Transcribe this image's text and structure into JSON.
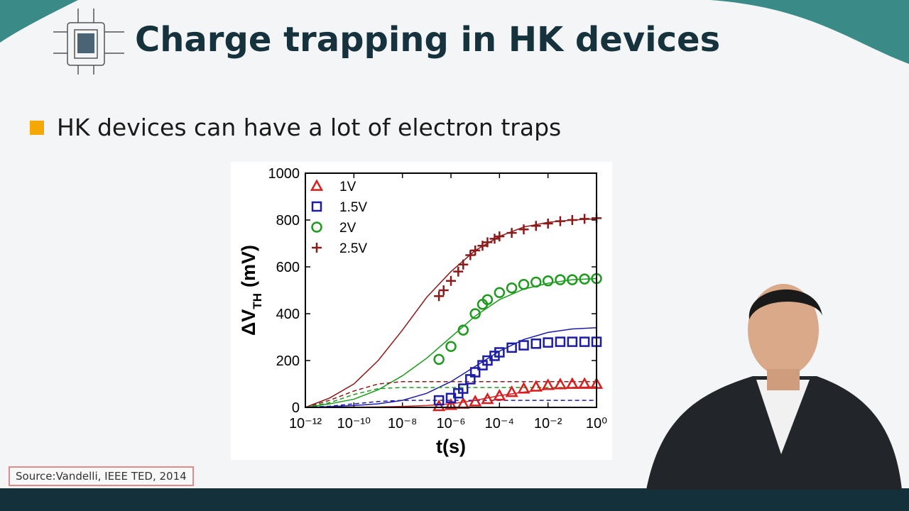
{
  "slide": {
    "title": "Charge trapping in HK devices",
    "bullet": "HK devices can have a lot of electron traps",
    "source": "Source:Vandelli, IEEE TED, 2014"
  },
  "chart_data": {
    "type": "scatter",
    "xlabel": "t(s)",
    "ylabel": [
      "ΔV",
      "TH",
      "(mV)"
    ],
    "xscale": "log",
    "xlim": [
      1e-12,
      1
    ],
    "ylim": [
      0,
      1000
    ],
    "xticks": [
      {
        "value": 1e-12,
        "label": "10⁻¹²"
      },
      {
        "value": 1e-10,
        "label": "10⁻¹⁰"
      },
      {
        "value": 1e-08,
        "label": "10⁻⁸"
      },
      {
        "value": 1e-06,
        "label": "10⁻⁶"
      },
      {
        "value": 0.0001,
        "label": "10⁻⁴"
      },
      {
        "value": 0.01,
        "label": "10⁻²"
      },
      {
        "value": 1,
        "label": "10⁰"
      }
    ],
    "yticks": [
      0,
      200,
      400,
      600,
      800,
      1000
    ],
    "legend": "upper left",
    "series": [
      {
        "name": "1V",
        "color": "#d81e1e",
        "marker": "triangle",
        "x": [
          3.2e-07,
          1e-06,
          3.2e-06,
          1e-05,
          3.2e-05,
          0.0001,
          0.00032,
          0.001,
          0.0032,
          0.01,
          0.032,
          0.1,
          0.32,
          1
        ],
        "values": [
          5,
          10,
          15,
          25,
          35,
          50,
          65,
          80,
          88,
          95,
          98,
          100,
          100,
          100
        ]
      },
      {
        "name": "1.5V",
        "color": "#1c1ca8",
        "marker": "square",
        "x": [
          3.2e-07,
          1e-06,
          2e-06,
          3.2e-06,
          6.3e-06,
          1e-05,
          2e-05,
          3.2e-05,
          6.3e-05,
          0.0001,
          0.00032,
          0.001,
          0.0032,
          0.01,
          0.032,
          0.1,
          0.32,
          1
        ],
        "values": [
          30,
          40,
          60,
          80,
          120,
          150,
          180,
          200,
          220,
          235,
          255,
          265,
          272,
          277,
          280,
          280,
          280,
          280
        ]
      },
      {
        "name": "2V",
        "color": "#1e9a1e",
        "marker": "circle",
        "x": [
          3.2e-07,
          1e-06,
          3.2e-06,
          1e-05,
          2e-05,
          3.2e-05,
          0.0001,
          0.00032,
          0.001,
          0.0032,
          0.01,
          0.032,
          0.1,
          0.32,
          1
        ],
        "values": [
          205,
          260,
          330,
          400,
          440,
          460,
          490,
          510,
          525,
          535,
          540,
          545,
          545,
          548,
          550
        ]
      },
      {
        "name": "2.5V",
        "color": "#8b1a1a",
        "marker": "plus",
        "x": [
          3.2e-07,
          5e-07,
          1e-06,
          2e-06,
          3.2e-06,
          6.3e-06,
          1e-05,
          2e-05,
          3.2e-05,
          6.3e-05,
          0.0001,
          0.00032,
          0.001,
          0.0032,
          0.01,
          0.032,
          0.1,
          0.32,
          1
        ],
        "values": [
          475,
          500,
          540,
          580,
          610,
          650,
          670,
          690,
          705,
          720,
          730,
          745,
          760,
          775,
          785,
          795,
          800,
          805,
          808
        ]
      }
    ],
    "fit_x": [
      1e-12,
      1e-11,
      1e-10,
      1e-09,
      1e-08,
      1e-07,
      1e-06,
      1e-05,
      0.0001,
      0.001,
      0.01,
      0.1,
      1
    ],
    "fits": [
      {
        "color": "#d81e1e",
        "dash": false,
        "values": [
          0,
          0,
          1,
          2,
          4,
          8,
          15,
          30,
          50,
          65,
          78,
          85,
          88
        ]
      },
      {
        "color": "#1c1ca8",
        "dash": false,
        "values": [
          0,
          3,
          8,
          15,
          30,
          60,
          110,
          175,
          240,
          290,
          320,
          335,
          340
        ]
      },
      {
        "color": "#1e9a1e",
        "dash": false,
        "values": [
          0,
          15,
          35,
          75,
          135,
          210,
          300,
          390,
          460,
          505,
          530,
          545,
          550
        ]
      },
      {
        "color": "#8b1a1a",
        "dash": false,
        "values": [
          0,
          40,
          100,
          200,
          330,
          470,
          580,
          670,
          730,
          770,
          790,
          800,
          805
        ]
      },
      {
        "color": "#8b1a1a",
        "dash": true,
        "values": [
          0,
          30,
          70,
          100,
          110,
          110,
          110,
          110,
          110,
          110,
          110,
          110,
          110
        ]
      },
      {
        "color": "#1e9a1e",
        "dash": true,
        "values": [
          0,
          20,
          55,
          80,
          85,
          85,
          85,
          85,
          85,
          85,
          85,
          85,
          85
        ]
      },
      {
        "color": "#1c1ca8",
        "dash": true,
        "values": [
          0,
          5,
          15,
          25,
          30,
          30,
          30,
          30,
          30,
          30,
          30,
          30,
          30
        ]
      }
    ]
  }
}
